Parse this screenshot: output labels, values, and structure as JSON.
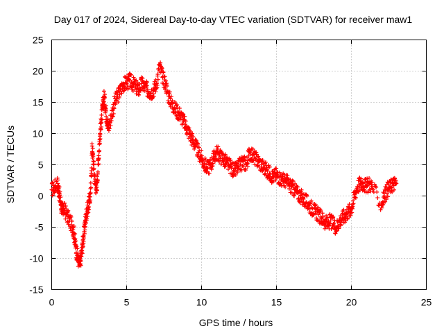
{
  "chart_data": {
    "type": "scatter",
    "title": "Day 017 of 2024, Sidereal Day-to-day VTEC variation (SDTVAR) for receiver maw1",
    "xlabel": "GPS time / hours",
    "ylabel": "SDTVAR / TECUs",
    "xlim": [
      0,
      25
    ],
    "ylim": [
      -15,
      25
    ],
    "xticks": [
      0,
      5,
      10,
      15,
      20,
      25
    ],
    "yticks": [
      -15,
      -10,
      -5,
      0,
      5,
      10,
      15,
      20,
      25
    ],
    "grid": true,
    "marker": "+",
    "series_color": "#ff0000",
    "series": [
      {
        "name": "SDTVAR",
        "x": [
          0.0,
          0.2,
          0.4,
          0.5,
          0.6,
          0.7,
          0.8,
          1.0,
          1.2,
          1.4,
          1.5,
          1.6,
          1.7,
          1.8,
          1.9,
          2.0,
          2.1,
          2.2,
          2.3,
          2.4,
          2.5,
          2.6,
          2.7,
          2.8,
          2.9,
          3.0,
          3.1,
          3.2,
          3.3,
          3.4,
          3.5,
          3.6,
          3.7,
          3.8,
          4.0,
          4.2,
          4.4,
          4.6,
          4.8,
          5.0,
          5.2,
          5.4,
          5.6,
          5.8,
          6.0,
          6.2,
          6.4,
          6.6,
          6.8,
          7.0,
          7.2,
          7.4,
          7.6,
          7.8,
          8.0,
          8.2,
          8.4,
          8.6,
          8.8,
          9.0,
          9.2,
          9.4,
          9.6,
          9.8,
          10.0,
          10.2,
          10.4,
          10.6,
          10.8,
          11.0,
          11.2,
          11.4,
          11.6,
          11.8,
          12.0,
          12.2,
          12.4,
          12.6,
          12.8,
          13.0,
          13.2,
          13.4,
          13.6,
          13.8,
          14.0,
          14.2,
          14.4,
          14.6,
          14.8,
          15.0,
          15.2,
          15.4,
          15.6,
          15.8,
          16.0,
          16.2,
          16.4,
          16.6,
          16.8,
          17.0,
          17.2,
          17.4,
          17.6,
          17.8,
          18.0,
          18.2,
          18.4,
          18.6,
          18.8,
          19.0,
          19.2,
          19.4,
          19.6,
          19.8,
          20.0,
          20.2,
          20.4,
          20.6,
          20.8,
          21.0,
          21.2,
          21.4,
          22.0,
          22.2,
          22.4,
          22.6,
          22.8,
          23.0
        ],
        "y": [
          1.0,
          1.5,
          2.0,
          0.5,
          -1.0,
          -2.5,
          -2.0,
          -3.0,
          -4.0,
          -5.0,
          -6.0,
          -8.0,
          -9.5,
          -10.5,
          -11.0,
          -9.0,
          -7.0,
          -5.0,
          -3.0,
          -2.0,
          -1.0,
          0.5,
          8.0,
          5.0,
          2.0,
          1.0,
          5.0,
          9.0,
          12.0,
          14.0,
          16.0,
          14.0,
          12.0,
          11.0,
          13.0,
          15.0,
          16.0,
          17.0,
          18.0,
          18.0,
          18.5,
          18.0,
          17.5,
          17.0,
          18.0,
          17.5,
          17.0,
          16.5,
          17.0,
          18.0,
          21.0,
          19.0,
          18.0,
          16.0,
          15.0,
          14.0,
          13.5,
          13.0,
          12.0,
          11.0,
          10.0,
          9.0,
          8.0,
          7.0,
          6.0,
          5.0,
          4.5,
          5.0,
          6.0,
          7.0,
          6.5,
          6.0,
          5.5,
          5.0,
          4.5,
          4.0,
          4.5,
          5.0,
          5.5,
          5.0,
          7.0,
          6.5,
          6.0,
          5.5,
          5.0,
          4.5,
          4.0,
          3.5,
          3.0,
          3.5,
          3.0,
          2.5,
          2.5,
          2.0,
          1.5,
          1.0,
          0.5,
          0.0,
          -0.5,
          -1.0,
          -1.5,
          -2.0,
          -2.5,
          -3.0,
          -3.5,
          -4.0,
          -4.5,
          -4.0,
          -4.5,
          -5.0,
          -4.0,
          -3.5,
          -3.0,
          -2.5,
          -2.0,
          0.0,
          1.5,
          2.0,
          2.0,
          1.5,
          2.0,
          1.5,
          -1.5,
          0.0,
          1.0,
          1.5,
          2.0,
          2.0
        ]
      }
    ]
  }
}
